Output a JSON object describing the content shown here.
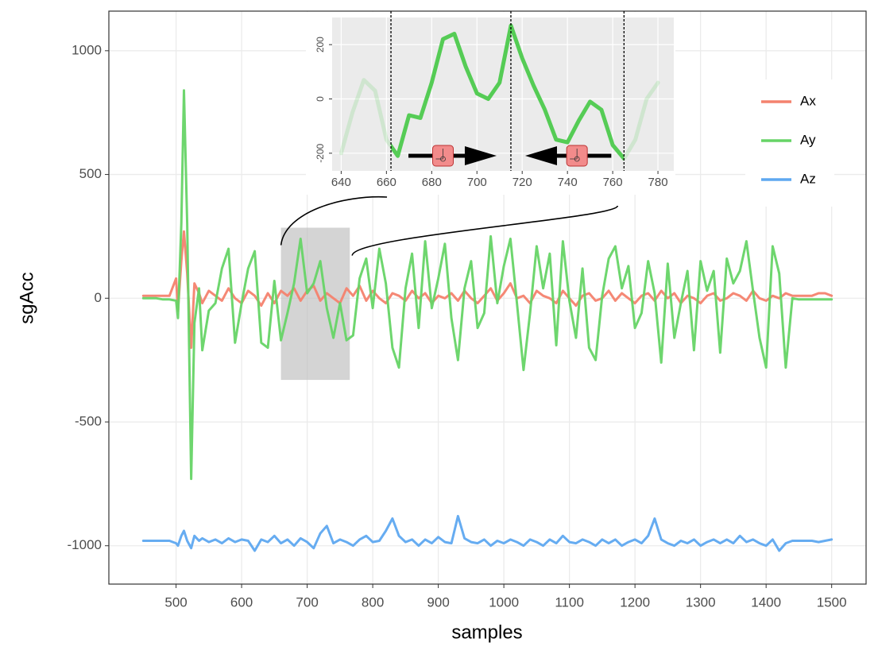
{
  "chart_data": [
    {
      "type": "line",
      "x_label": "samples",
      "y_label": "sgAcc",
      "x": [
        450,
        460,
        470,
        480,
        490,
        500,
        503,
        508,
        512,
        517,
        523,
        528,
        535,
        540,
        550,
        560,
        570,
        580,
        590,
        600,
        610,
        620,
        630,
        640,
        650,
        660,
        670,
        680,
        690,
        700,
        710,
        720,
        730,
        740,
        750,
        760,
        770,
        780,
        790,
        800,
        810,
        820,
        830,
        840,
        850,
        860,
        870,
        880,
        890,
        900,
        910,
        920,
        930,
        940,
        950,
        960,
        970,
        980,
        990,
        1000,
        1010,
        1020,
        1030,
        1040,
        1050,
        1060,
        1070,
        1080,
        1090,
        1100,
        1110,
        1120,
        1130,
        1140,
        1150,
        1160,
        1170,
        1180,
        1190,
        1200,
        1210,
        1220,
        1230,
        1240,
        1250,
        1260,
        1270,
        1280,
        1290,
        1300,
        1310,
        1320,
        1330,
        1340,
        1350,
        1360,
        1370,
        1380,
        1390,
        1400,
        1410,
        1420,
        1430,
        1440,
        1450,
        1460,
        1470,
        1480,
        1490,
        1500
      ],
      "series": [
        {
          "name": "Ax",
          "color": "#f4826e",
          "values": [
            10,
            10,
            10,
            10,
            10,
            80,
            -50,
            150,
            270,
            100,
            -200,
            60,
            20,
            -20,
            30,
            10,
            -10,
            40,
            0,
            -20,
            30,
            10,
            -30,
            20,
            -20,
            30,
            10,
            40,
            -10,
            30,
            50,
            -10,
            20,
            0,
            -20,
            40,
            10,
            50,
            -10,
            30,
            0,
            -20,
            20,
            10,
            -10,
            30,
            0,
            20,
            -20,
            10,
            0,
            20,
            -10,
            30,
            0,
            -20,
            10,
            40,
            -10,
            20,
            60,
            0,
            10,
            -20,
            30,
            10,
            0,
            -20,
            30,
            0,
            -30,
            10,
            20,
            -10,
            0,
            30,
            -10,
            20,
            0,
            -20,
            10,
            20,
            -10,
            30,
            0,
            20,
            -20,
            10,
            0,
            -20,
            10,
            20,
            -10,
            0,
            20,
            10,
            -10,
            30,
            0,
            -10,
            10,
            0,
            20,
            10,
            10,
            10,
            10,
            20,
            20,
            10
          ]
        },
        {
          "name": "Ay",
          "color": "#66d466",
          "values": [
            0,
            0,
            0,
            -5,
            -5,
            -10,
            -80,
            300,
            840,
            300,
            -730,
            -100,
            40,
            -210,
            -50,
            -20,
            120,
            200,
            -180,
            -20,
            120,
            190,
            -180,
            -200,
            70,
            -170,
            -60,
            60,
            240,
            20,
            60,
            150,
            -40,
            -160,
            -20,
            -170,
            -150,
            80,
            160,
            -40,
            200,
            60,
            -200,
            -280,
            40,
            180,
            -120,
            230,
            -40,
            80,
            220,
            -80,
            -250,
            40,
            150,
            -120,
            -60,
            250,
            -20,
            130,
            240,
            -20,
            -290,
            -60,
            210,
            40,
            180,
            -190,
            230,
            -10,
            -160,
            120,
            -200,
            -250,
            10,
            160,
            210,
            40,
            130,
            -120,
            -60,
            150,
            20,
            -260,
            140,
            -160,
            -20,
            110,
            -210,
            150,
            30,
            110,
            -220,
            160,
            60,
            110,
            230,
            30,
            -160,
            -280,
            210,
            100,
            -280,
            0,
            -5,
            -5,
            -5,
            -5,
            -5,
            -5
          ]
        },
        {
          "name": "Az",
          "color": "#5ea8f0",
          "values": [
            -980,
            -980,
            -980,
            -980,
            -980,
            -990,
            -1000,
            -960,
            -940,
            -980,
            -1010,
            -960,
            -980,
            -970,
            -985,
            -975,
            -990,
            -970,
            -985,
            -975,
            -980,
            -1020,
            -975,
            -985,
            -960,
            -990,
            -975,
            -1000,
            -970,
            -985,
            -1010,
            -950,
            -920,
            -990,
            -975,
            -985,
            -1000,
            -975,
            -960,
            -985,
            -980,
            -940,
            -890,
            -960,
            -985,
            -975,
            -1000,
            -975,
            -990,
            -965,
            -985,
            -990,
            -880,
            -970,
            -985,
            -990,
            -975,
            -1000,
            -980,
            -990,
            -975,
            -985,
            -1000,
            -975,
            -985,
            -1000,
            -975,
            -990,
            -960,
            -985,
            -990,
            -975,
            -985,
            -1000,
            -975,
            -990,
            -975,
            -1000,
            -985,
            -975,
            -990,
            -960,
            -890,
            -975,
            -990,
            -1000,
            -980,
            -990,
            -975,
            -1000,
            -985,
            -975,
            -990,
            -975,
            -990,
            -960,
            -985,
            -975,
            -990,
            -1000,
            -975,
            -1020,
            -990,
            -980,
            -980,
            -980,
            -980,
            -985,
            -980,
            -975
          ]
        }
      ],
      "xlim": [
        397.5,
        1552.5
      ],
      "ylim": [
        -1155,
        1160
      ],
      "xticks": [
        500,
        600,
        700,
        800,
        900,
        1000,
        1100,
        1200,
        1300,
        1400,
        1500
      ],
      "yticks": [
        -1000,
        -500,
        0,
        500,
        1000
      ],
      "grid": true,
      "legend": "right",
      "highlight_x": [
        660,
        765
      ],
      "highlight_y": [
        -330,
        285
      ]
    },
    {
      "type": "line",
      "color": "#55cc55",
      "x": [
        640,
        645,
        650,
        655,
        660,
        665,
        670,
        675,
        680,
        685,
        690,
        695,
        700,
        705,
        710,
        715,
        720,
        725,
        730,
        735,
        740,
        745,
        750,
        755,
        760,
        765,
        770,
        775,
        780
      ],
      "values": [
        -200,
        -50,
        70,
        30,
        -150,
        -210,
        -60,
        -70,
        60,
        220,
        240,
        120,
        20,
        0,
        60,
        270,
        150,
        50,
        -40,
        -150,
        -160,
        -80,
        -10,
        -40,
        -170,
        -220,
        -150,
        0,
        60
      ],
      "xlim": [
        636,
        787
      ],
      "ylim": [
        -265,
        300
      ],
      "xticks": [
        640,
        660,
        680,
        700,
        720,
        740,
        760,
        780
      ],
      "yticks": [
        -200,
        0,
        200
      ],
      "vlines": [
        662,
        715,
        765
      ]
    }
  ]
}
